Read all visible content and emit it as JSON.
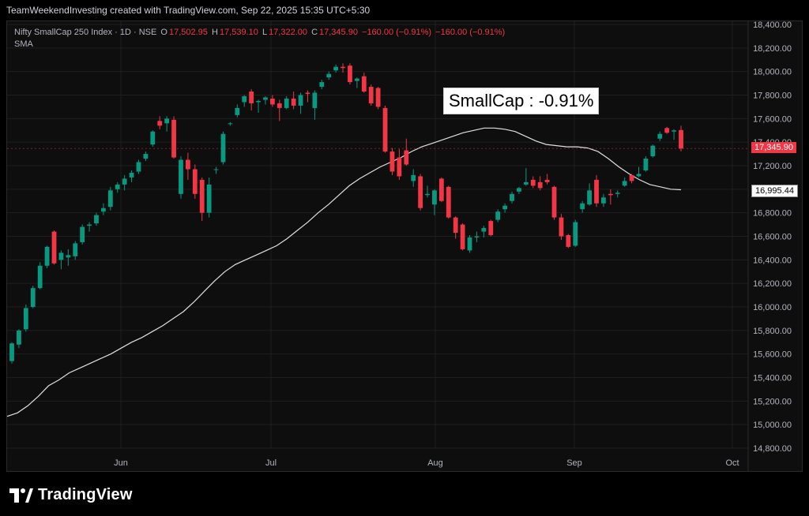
{
  "header": {
    "attribution": "TeamWeekendInvesting created with TradingView.com, Sep 22, 2025 15:35 UTC+5:30"
  },
  "legend": {
    "symbol": "Nifty SmallCap 250 Index · 1D · NSE",
    "o_label": "O",
    "o_val": "17,502.95",
    "h_label": "H",
    "h_val": "17,539.10",
    "l_label": "L",
    "l_val": "17,322.00",
    "c_label": "C",
    "c_val": "17,345.90",
    "chg": "−160.00 (−0.91%)",
    "chg2": "−160.00 (−0.91%)",
    "indicator": "SMA"
  },
  "callout": "SmallCap : -0.91%",
  "price_tag": "17,345.90",
  "sma_tag": "16,995.44",
  "footer": {
    "brand": "TradingView"
  },
  "colors": {
    "up": "#089981",
    "down": "#f23645",
    "sma": "#e0e0e0",
    "grid": "#1f1f1f",
    "background": "#0e0e0e"
  },
  "chart_data": {
    "type": "candlestick",
    "y_ticks": [
      "18,400.00",
      "18,200.00",
      "18,000.00",
      "17,800.00",
      "17,600.00",
      "17,400.00",
      "17,200.00",
      "17,000.00",
      "16,800.00",
      "16,600.00",
      "16,400.00",
      "16,200.00",
      "16,000.00",
      "15,800.00",
      "15,600.00",
      "15,400.00",
      "15,200.00",
      "15,000.00",
      "14,800.00"
    ],
    "ylim": [
      14800,
      18400
    ],
    "x_ticks": [
      "Jun",
      "Jul",
      "Aug",
      "Sep",
      "Oct"
    ],
    "candles": [
      {
        "o": 15540,
        "h": 15700,
        "l": 15520,
        "c": 15690
      },
      {
        "o": 15680,
        "h": 15810,
        "l": 15650,
        "c": 15800
      },
      {
        "o": 15810,
        "h": 16020,
        "l": 15790,
        "c": 15990
      },
      {
        "o": 16000,
        "h": 16180,
        "l": 15990,
        "c": 16160
      },
      {
        "o": 16160,
        "h": 16380,
        "l": 16150,
        "c": 16350
      },
      {
        "o": 16350,
        "h": 16520,
        "l": 16330,
        "c": 16510
      },
      {
        "o": 16640,
        "h": 16650,
        "l": 16360,
        "c": 16370
      },
      {
        "o": 16400,
        "h": 16480,
        "l": 16320,
        "c": 16460
      },
      {
        "o": 16420,
        "h": 16490,
        "l": 16350,
        "c": 16440
      },
      {
        "o": 16430,
        "h": 16560,
        "l": 16400,
        "c": 16540
      },
      {
        "o": 16550,
        "h": 16700,
        "l": 16530,
        "c": 16680
      },
      {
        "o": 16690,
        "h": 16720,
        "l": 16640,
        "c": 16700
      },
      {
        "o": 16710,
        "h": 16800,
        "l": 16690,
        "c": 16780
      },
      {
        "o": 16810,
        "h": 16880,
        "l": 16780,
        "c": 16840
      },
      {
        "o": 16850,
        "h": 17020,
        "l": 16820,
        "c": 16990
      },
      {
        "o": 17000,
        "h": 17060,
        "l": 16970,
        "c": 17040
      },
      {
        "o": 17040,
        "h": 17120,
        "l": 16990,
        "c": 17090
      },
      {
        "o": 17100,
        "h": 17160,
        "l": 17060,
        "c": 17140
      },
      {
        "o": 17150,
        "h": 17250,
        "l": 17130,
        "c": 17230
      },
      {
        "o": 17260,
        "h": 17320,
        "l": 17240,
        "c": 17300
      },
      {
        "o": 17380,
        "h": 17500,
        "l": 17360,
        "c": 17490
      },
      {
        "o": 17580,
        "h": 17620,
        "l": 17510,
        "c": 17540
      },
      {
        "o": 17560,
        "h": 17620,
        "l": 17490,
        "c": 17600
      },
      {
        "o": 17590,
        "h": 17620,
        "l": 17260,
        "c": 17270
      },
      {
        "o": 16960,
        "h": 17280,
        "l": 16920,
        "c": 17250
      },
      {
        "o": 17250,
        "h": 17310,
        "l": 17080,
        "c": 17170
      },
      {
        "o": 17170,
        "h": 17210,
        "l": 16920,
        "c": 16960
      },
      {
        "o": 17080,
        "h": 17100,
        "l": 16730,
        "c": 16800
      },
      {
        "o": 16800,
        "h": 17100,
        "l": 16760,
        "c": 17040
      },
      {
        "o": 17170,
        "h": 17190,
        "l": 17130,
        "c": 17170
      },
      {
        "o": 17230,
        "h": 17490,
        "l": 17210,
        "c": 17470
      },
      {
        "o": 17560,
        "h": 17570,
        "l": 17540,
        "c": 17560
      },
      {
        "o": 17630,
        "h": 17720,
        "l": 17610,
        "c": 17690
      },
      {
        "o": 17740,
        "h": 17800,
        "l": 17700,
        "c": 17790
      },
      {
        "o": 17830,
        "h": 17850,
        "l": 17670,
        "c": 17730
      },
      {
        "o": 17740,
        "h": 17760,
        "l": 17650,
        "c": 17750
      },
      {
        "o": 17760,
        "h": 17790,
        "l": 17720,
        "c": 17780
      },
      {
        "o": 17770,
        "h": 17800,
        "l": 17700,
        "c": 17720
      },
      {
        "o": 17730,
        "h": 17760,
        "l": 17580,
        "c": 17690
      },
      {
        "o": 17690,
        "h": 17790,
        "l": 17680,
        "c": 17770
      },
      {
        "o": 17770,
        "h": 17830,
        "l": 17680,
        "c": 17710
      },
      {
        "o": 17710,
        "h": 17820,
        "l": 17640,
        "c": 17800
      },
      {
        "o": 17820,
        "h": 17840,
        "l": 17740,
        "c": 17810
      },
      {
        "o": 17690,
        "h": 17840,
        "l": 17590,
        "c": 17820
      },
      {
        "o": 17870,
        "h": 17930,
        "l": 17850,
        "c": 17910
      },
      {
        "o": 17950,
        "h": 18000,
        "l": 17930,
        "c": 17980
      },
      {
        "o": 18010,
        "h": 18060,
        "l": 17990,
        "c": 18040
      },
      {
        "o": 18040,
        "h": 18070,
        "l": 17990,
        "c": 18030
      },
      {
        "o": 18050,
        "h": 18070,
        "l": 17890,
        "c": 17910
      },
      {
        "o": 17920,
        "h": 17950,
        "l": 17860,
        "c": 17940
      },
      {
        "o": 17960,
        "h": 17990,
        "l": 17820,
        "c": 17830
      },
      {
        "o": 17870,
        "h": 17890,
        "l": 17710,
        "c": 17730
      },
      {
        "o": 17860,
        "h": 17870,
        "l": 17680,
        "c": 17700
      },
      {
        "o": 17690,
        "h": 17710,
        "l": 17310,
        "c": 17320
      },
      {
        "o": 17320,
        "h": 17350,
        "l": 17120,
        "c": 17150
      },
      {
        "o": 17270,
        "h": 17340,
        "l": 17080,
        "c": 17110
      },
      {
        "o": 17330,
        "h": 17430,
        "l": 17200,
        "c": 17210
      },
      {
        "o": 17070,
        "h": 17170,
        "l": 17020,
        "c": 17120
      },
      {
        "o": 17110,
        "h": 17130,
        "l": 16820,
        "c": 16840
      },
      {
        "o": 16950,
        "h": 17030,
        "l": 16930,
        "c": 16960
      },
      {
        "o": 16870,
        "h": 17000,
        "l": 16780,
        "c": 16990
      },
      {
        "o": 17090,
        "h": 17100,
        "l": 16890,
        "c": 16900
      },
      {
        "o": 17020,
        "h": 17030,
        "l": 16750,
        "c": 16760
      },
      {
        "o": 16760,
        "h": 16770,
        "l": 16580,
        "c": 16630
      },
      {
        "o": 16700,
        "h": 16710,
        "l": 16480,
        "c": 16490
      },
      {
        "o": 16480,
        "h": 16610,
        "l": 16460,
        "c": 16590
      },
      {
        "o": 16590,
        "h": 16640,
        "l": 16550,
        "c": 16600
      },
      {
        "o": 16640,
        "h": 16690,
        "l": 16590,
        "c": 16670
      },
      {
        "o": 16730,
        "h": 16740,
        "l": 16600,
        "c": 16610
      },
      {
        "o": 16740,
        "h": 16830,
        "l": 16720,
        "c": 16810
      },
      {
        "o": 16830,
        "h": 16880,
        "l": 16800,
        "c": 16860
      },
      {
        "o": 16900,
        "h": 16980,
        "l": 16880,
        "c": 16960
      },
      {
        "o": 16980,
        "h": 17020,
        "l": 16960,
        "c": 17010
      },
      {
        "o": 17040,
        "h": 17180,
        "l": 17030,
        "c": 17060
      },
      {
        "o": 17080,
        "h": 17110,
        "l": 17010,
        "c": 17030
      },
      {
        "o": 17060,
        "h": 17110,
        "l": 16990,
        "c": 17010
      },
      {
        "o": 17080,
        "h": 17130,
        "l": 17040,
        "c": 17060
      },
      {
        "o": 17020,
        "h": 17030,
        "l": 16740,
        "c": 16760
      },
      {
        "o": 16760,
        "h": 16790,
        "l": 16570,
        "c": 16600
      },
      {
        "o": 16610,
        "h": 16620,
        "l": 16500,
        "c": 16510
      },
      {
        "o": 16520,
        "h": 16740,
        "l": 16510,
        "c": 16720
      },
      {
        "o": 16830,
        "h": 16900,
        "l": 16800,
        "c": 16880
      },
      {
        "o": 16870,
        "h": 17050,
        "l": 16860,
        "c": 16990
      },
      {
        "o": 17080,
        "h": 17120,
        "l": 16850,
        "c": 16880
      },
      {
        "o": 16880,
        "h": 16960,
        "l": 16850,
        "c": 16930
      },
      {
        "o": 16960,
        "h": 17000,
        "l": 16870,
        "c": 16950
      },
      {
        "o": 16960,
        "h": 16990,
        "l": 16930,
        "c": 16970
      },
      {
        "o": 17030,
        "h": 17100,
        "l": 17020,
        "c": 17070
      },
      {
        "o": 17120,
        "h": 17130,
        "l": 17050,
        "c": 17070
      },
      {
        "o": 17110,
        "h": 17190,
        "l": 17100,
        "c": 17130
      },
      {
        "o": 17160,
        "h": 17280,
        "l": 17150,
        "c": 17260
      },
      {
        "o": 17280,
        "h": 17380,
        "l": 17270,
        "c": 17370
      },
      {
        "o": 17430,
        "h": 17490,
        "l": 17410,
        "c": 17470
      },
      {
        "o": 17520,
        "h": 17530,
        "l": 17470,
        "c": 17480
      },
      {
        "o": 17490,
        "h": 17510,
        "l": 17420,
        "c": 17500
      },
      {
        "o": 17502.95,
        "h": 17539.1,
        "l": 17322,
        "c": 17345.9
      }
    ],
    "sma": [
      15070,
      15100,
      15160,
      15240,
      15330,
      15380,
      15440,
      15480,
      15520,
      15560,
      15600,
      15650,
      15700,
      15740,
      15790,
      15840,
      15900,
      15960,
      16040,
      16130,
      16220,
      16300,
      16360,
      16400,
      16440,
      16480,
      16520,
      16580,
      16650,
      16720,
      16800,
      16870,
      16950,
      17030,
      17090,
      17140,
      17190,
      17230,
      17270,
      17320,
      17360,
      17390,
      17420,
      17450,
      17480,
      17500,
      17520,
      17520,
      17510,
      17490,
      17450,
      17410,
      17380,
      17370,
      17360,
      17360,
      17350,
      17320,
      17260,
      17190,
      17130,
      17080,
      17040,
      17020,
      17000,
      16995.44
    ]
  }
}
